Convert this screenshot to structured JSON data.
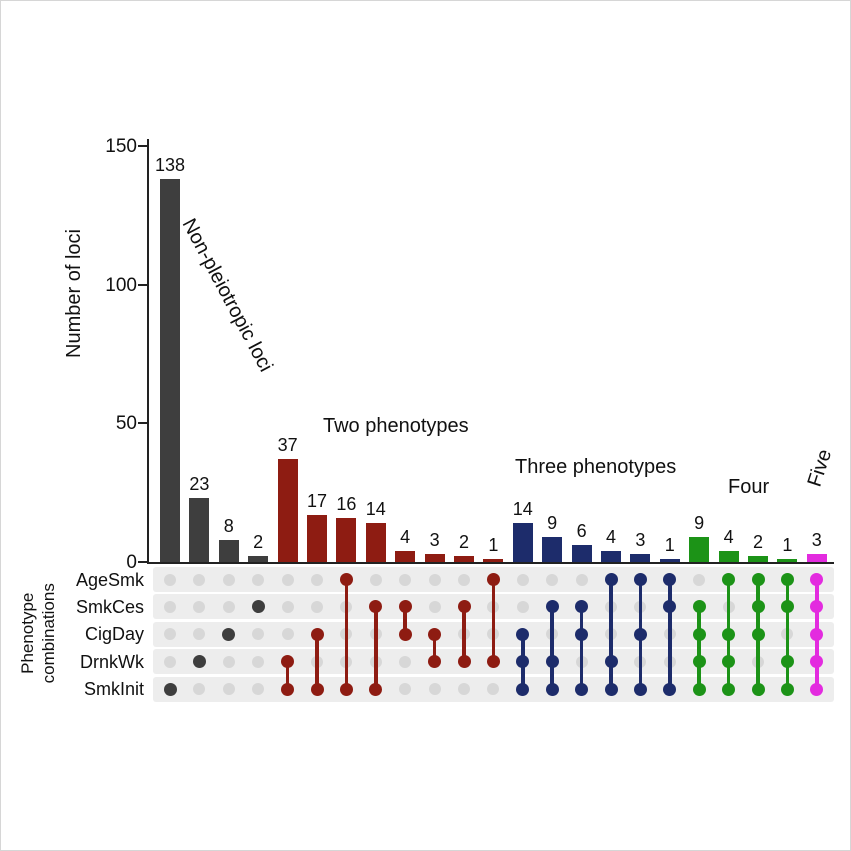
{
  "chart_data": {
    "type": "bar",
    "variant": "upset",
    "title": "",
    "ylabel": "Number of loci",
    "matrix_ylabel_line1": "Phenotype",
    "matrix_ylabel_line2": "combinations",
    "ylim": [
      0,
      150
    ],
    "yticks": [
      0,
      50,
      100,
      150
    ],
    "grid": false,
    "legend_position": "none",
    "categories": [
      "AgeSmk",
      "SmkCes",
      "CigDay",
      "DrnkWk",
      "SmkInit"
    ],
    "colors": {
      "empty_dot": "#d7d7d7",
      "row_band": "#ededed",
      "axis": "#222222",
      "text": "#111111",
      "background": "#ffffff"
    },
    "groups": [
      {
        "name": "non_pleiotropic",
        "label": "Non-pleiotropic loci",
        "color": "#3e3e3e"
      },
      {
        "name": "two_phenotypes",
        "label": "Two phenotypes",
        "color": "#8e1c12"
      },
      {
        "name": "three_phenotypes",
        "label": "Three phenotypes",
        "color": "#1d2c6b"
      },
      {
        "name": "four_phenotypes",
        "label": "Four",
        "color": "#1c9317"
      },
      {
        "name": "five_phenotypes",
        "label": "Five",
        "color": "#e32bdf"
      }
    ],
    "columns": [
      {
        "value": 138,
        "group": "non_pleiotropic",
        "members": [
          "SmkInit"
        ]
      },
      {
        "value": 23,
        "group": "non_pleiotropic",
        "members": [
          "DrnkWk"
        ]
      },
      {
        "value": 8,
        "group": "non_pleiotropic",
        "members": [
          "CigDay"
        ]
      },
      {
        "value": 2,
        "group": "non_pleiotropic",
        "members": [
          "SmkCes"
        ]
      },
      {
        "value": 37,
        "group": "two_phenotypes",
        "members": [
          "DrnkWk",
          "SmkInit"
        ]
      },
      {
        "value": 17,
        "group": "two_phenotypes",
        "members": [
          "CigDay",
          "SmkInit"
        ]
      },
      {
        "value": 16,
        "group": "two_phenotypes",
        "members": [
          "AgeSmk",
          "SmkInit"
        ]
      },
      {
        "value": 14,
        "group": "two_phenotypes",
        "members": [
          "SmkCes",
          "SmkInit"
        ]
      },
      {
        "value": 4,
        "group": "two_phenotypes",
        "members": [
          "SmkCes",
          "CigDay"
        ]
      },
      {
        "value": 3,
        "group": "two_phenotypes",
        "members": [
          "CigDay",
          "DrnkWk"
        ]
      },
      {
        "value": 2,
        "group": "two_phenotypes",
        "members": [
          "SmkCes",
          "DrnkWk"
        ]
      },
      {
        "value": 1,
        "group": "two_phenotypes",
        "members": [
          "AgeSmk",
          "DrnkWk"
        ]
      },
      {
        "value": 14,
        "group": "three_phenotypes",
        "members": [
          "CigDay",
          "DrnkWk",
          "SmkInit"
        ]
      },
      {
        "value": 9,
        "group": "three_phenotypes",
        "members": [
          "SmkCes",
          "DrnkWk",
          "SmkInit"
        ]
      },
      {
        "value": 6,
        "group": "three_phenotypes",
        "members": [
          "SmkCes",
          "CigDay",
          "SmkInit"
        ]
      },
      {
        "value": 4,
        "group": "three_phenotypes",
        "members": [
          "AgeSmk",
          "DrnkWk",
          "SmkInit"
        ]
      },
      {
        "value": 3,
        "group": "three_phenotypes",
        "members": [
          "AgeSmk",
          "CigDay",
          "SmkInit"
        ]
      },
      {
        "value": 1,
        "group": "three_phenotypes",
        "members": [
          "AgeSmk",
          "SmkCes",
          "SmkInit"
        ]
      },
      {
        "value": 9,
        "group": "four_phenotypes",
        "members": [
          "SmkCes",
          "CigDay",
          "DrnkWk",
          "SmkInit"
        ]
      },
      {
        "value": 4,
        "group": "four_phenotypes",
        "members": [
          "AgeSmk",
          "CigDay",
          "DrnkWk",
          "SmkInit"
        ]
      },
      {
        "value": 2,
        "group": "four_phenotypes",
        "members": [
          "AgeSmk",
          "SmkCes",
          "CigDay",
          "SmkInit"
        ]
      },
      {
        "value": 1,
        "group": "four_phenotypes",
        "members": [
          "AgeSmk",
          "SmkCes",
          "DrnkWk",
          "SmkInit"
        ]
      },
      {
        "value": 3,
        "group": "five_phenotypes",
        "members": [
          "AgeSmk",
          "SmkCes",
          "CigDay",
          "DrnkWk",
          "SmkInit"
        ]
      }
    ]
  }
}
